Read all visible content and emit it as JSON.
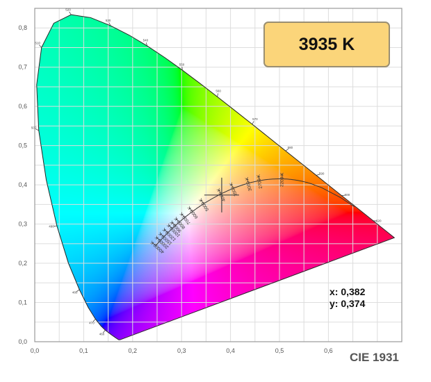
{
  "chart_data": {
    "type": "scatter",
    "title": "CIE 1931",
    "xlim": [
      0.0,
      0.75
    ],
    "ylim": [
      0.0,
      0.85
    ],
    "grid": true,
    "x_ticks": [
      "0,0",
      "0,1",
      "0,2",
      "0,3",
      "0,4",
      "0,5",
      "0,6"
    ],
    "x_tick_values": [
      0,
      0.1,
      0.2,
      0.3,
      0.4,
      0.5,
      0.6
    ],
    "y_ticks": [
      "0,0",
      "0,1",
      "0,2",
      "0,3",
      "0,4",
      "0,5",
      "0,6",
      "0,7",
      "0,8"
    ],
    "y_tick_values": [
      0,
      0.1,
      0.2,
      0.3,
      0.4,
      0.5,
      0.6,
      0.7,
      0.8
    ],
    "spectral_locus": [
      [
        380,
        0.1741,
        0.005
      ],
      [
        420,
        0.1714,
        0.0051
      ],
      [
        440,
        0.1644,
        0.0109
      ],
      [
        450,
        0.1566,
        0.0177
      ],
      [
        460,
        0.144,
        0.0297
      ],
      [
        465,
        0.1355,
        0.0399
      ],
      [
        470,
        0.1241,
        0.0578
      ],
      [
        475,
        0.1096,
        0.0868
      ],
      [
        480,
        0.0913,
        0.1327
      ],
      [
        485,
        0.0687,
        0.2007
      ],
      [
        490,
        0.0454,
        0.295
      ],
      [
        495,
        0.0235,
        0.4127
      ],
      [
        500,
        0.0082,
        0.5384
      ],
      [
        505,
        0.0039,
        0.6548
      ],
      [
        510,
        0.0139,
        0.7502
      ],
      [
        515,
        0.0389,
        0.812
      ],
      [
        520,
        0.0743,
        0.8338
      ],
      [
        525,
        0.1142,
        0.8262
      ],
      [
        530,
        0.1547,
        0.8059
      ],
      [
        535,
        0.1929,
        0.7816
      ],
      [
        540,
        0.2296,
        0.7543
      ],
      [
        545,
        0.2658,
        0.7243
      ],
      [
        550,
        0.3016,
        0.6923
      ],
      [
        555,
        0.3373,
        0.6589
      ],
      [
        560,
        0.3731,
        0.6245
      ],
      [
        565,
        0.4087,
        0.5896
      ],
      [
        570,
        0.4441,
        0.5547
      ],
      [
        575,
        0.4788,
        0.5202
      ],
      [
        580,
        0.5125,
        0.4866
      ],
      [
        585,
        0.5448,
        0.4544
      ],
      [
        590,
        0.5752,
        0.4242
      ],
      [
        595,
        0.6029,
        0.3965
      ],
      [
        600,
        0.627,
        0.3725
      ],
      [
        610,
        0.6658,
        0.334
      ],
      [
        620,
        0.6915,
        0.3083
      ],
      [
        640,
        0.719,
        0.2809
      ],
      [
        700,
        0.7347,
        0.2653
      ]
    ],
    "wavelength_labels": [
      460,
      470,
      480,
      490,
      500,
      510,
      520,
      530,
      540,
      550,
      560,
      570,
      580,
      590,
      600,
      620
    ],
    "planckian_labels": [
      {
        "T": 40000,
        "label": "40000 K"
      },
      {
        "T": 20000,
        "label": "20000 K"
      },
      {
        "T": 15000,
        "label": "15000 K"
      },
      {
        "T": 12000,
        "label": "12000 K"
      },
      {
        "T": 10000,
        "label": "10000 K"
      },
      {
        "T": 9000,
        "label": "9000 K"
      },
      {
        "T": 8000,
        "label": "8000 K"
      },
      {
        "T": 7000,
        "label": "7000 K"
      },
      {
        "T": 6000,
        "label": "6000 K"
      },
      {
        "T": 5000,
        "label": "5000 K"
      },
      {
        "T": 4000,
        "label": "4000 K"
      },
      {
        "T": 3500,
        "label": "3500 K"
      },
      {
        "T": 3000,
        "label": "3000 K"
      },
      {
        "T": 2700,
        "label": "2700 K"
      },
      {
        "T": 2200,
        "label": "2200 K"
      }
    ],
    "marker": {
      "x": 0.382,
      "y": 0.374
    }
  },
  "readout": {
    "cct": "3935 K",
    "x": "x: 0,382",
    "y": "y: 0,374",
    "label": "CIE 1931"
  }
}
